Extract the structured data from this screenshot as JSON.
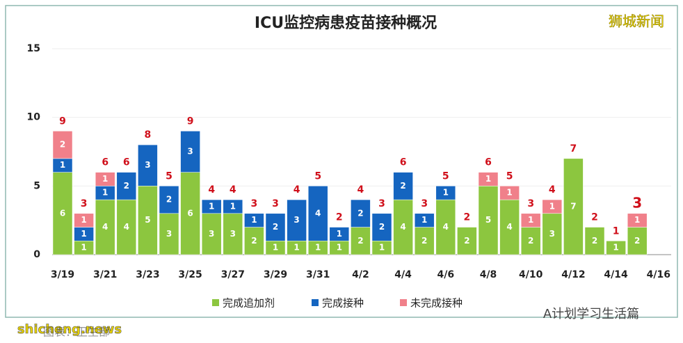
{
  "chart_data": {
    "type": "stacked_bar",
    "title": "ICU监控病患疫苗接种概况",
    "categories": [
      "3/19",
      null,
      "3/21",
      null,
      "3/23",
      null,
      "3/25",
      null,
      "3/27",
      null,
      "3/29",
      null,
      "3/31",
      null,
      "4/2",
      null,
      "4/4",
      null,
      "4/6",
      null,
      "4/8",
      null,
      "4/10",
      null,
      "4/12",
      null,
      "4/14",
      null,
      "4/16"
    ],
    "series": [
      {
        "name": "完成追加剂",
        "color": "#8cc63f",
        "values": [
          6,
          1,
          4,
          4,
          5,
          3,
          6,
          3,
          3,
          2,
          1,
          1,
          1,
          1,
          2,
          1,
          4,
          2,
          4,
          2,
          5,
          4,
          2,
          3,
          7,
          2,
          1,
          2,
          null
        ]
      },
      {
        "name": "完成接种",
        "color": "#1565c0",
        "values": [
          1,
          1,
          1,
          2,
          3,
          2,
          3,
          1,
          1,
          1,
          2,
          3,
          4,
          1,
          2,
          2,
          2,
          1,
          1,
          null,
          null,
          null,
          null,
          null,
          null,
          null,
          null,
          null,
          null
        ]
      },
      {
        "name": "未完成接种",
        "color": "#f0808a",
        "values": [
          2,
          1,
          1,
          null,
          null,
          null,
          null,
          null,
          null,
          null,
          null,
          null,
          null,
          null,
          null,
          null,
          null,
          null,
          null,
          null,
          1,
          1,
          1,
          1,
          null,
          null,
          null,
          1,
          null
        ]
      }
    ],
    "totals": [
      9,
      3,
      6,
      6,
      8,
      5,
      9,
      4,
      4,
      3,
      3,
      4,
      5,
      2,
      4,
      3,
      6,
      3,
      5,
      2,
      6,
      5,
      3,
      4,
      7,
      2,
      1,
      3,
      null
    ],
    "ylim": [
      0,
      15
    ],
    "yticks": [
      0,
      5,
      10,
      15
    ],
    "grid": true,
    "watermarks": [
      "狮城新闻",
      "A计划学习生活篇",
      "shicheng.news",
      "图表：卫生部"
    ]
  }
}
